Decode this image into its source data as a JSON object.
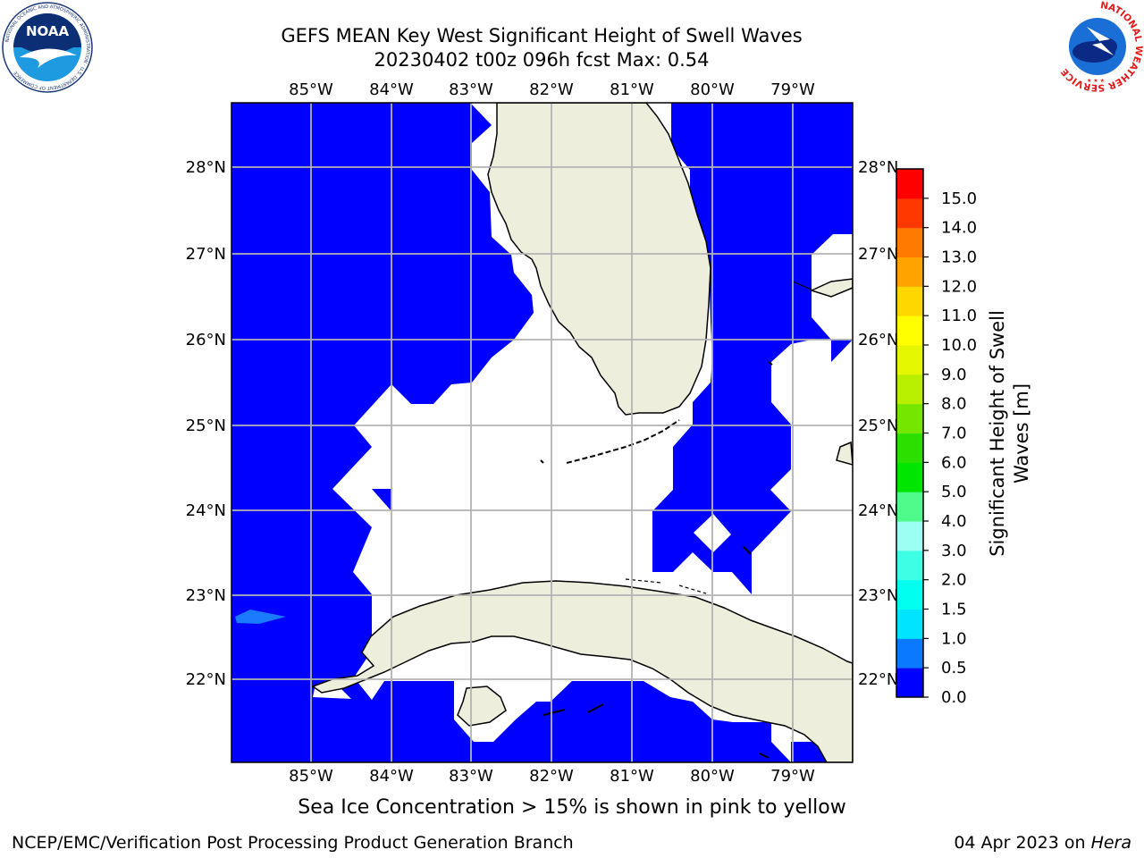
{
  "title": {
    "line1": "GEFS MEAN Key West Significant Height of Swell Waves",
    "line2": "20230402 t00z 096h fcst   Max: 0.54"
  },
  "map": {
    "lon_ticks": [
      "85°W",
      "84°W",
      "83°W",
      "82°W",
      "81°W",
      "80°W",
      "79°W"
    ],
    "lat_ticks_left": [
      "28°N",
      "27°N",
      "26°N",
      "25°N",
      "24°N",
      "23°N",
      "22°N"
    ],
    "lat_ticks_right": [
      "28°N",
      "27°N",
      "26°N",
      "25°N",
      "24°N",
      "23°N",
      "22°N"
    ],
    "water_color": "#0000ff",
    "land_color": "#eeeedd",
    "highlight_color": "#1a7bff"
  },
  "colorbar": {
    "label": "Significant Height of Swell Waves [m]",
    "tick_labels": [
      "0.0",
      "0.5",
      "1.0",
      "1.5",
      "2.0",
      "3.0",
      "4.0",
      "5.0",
      "6.0",
      "7.0",
      "8.0",
      "9.0",
      "10.0",
      "11.0",
      "12.0",
      "13.0",
      "14.0",
      "15.0"
    ],
    "colors": [
      "#0000ff",
      "#0a78ff",
      "#00e4ff",
      "#00ffee",
      "#3cffe6",
      "#9bfff3",
      "#4dfa8a",
      "#00e600",
      "#2ddf00",
      "#74e600",
      "#b8ee00",
      "#e5f700",
      "#ffff00",
      "#ffd700",
      "#ffa300",
      "#ff7a00",
      "#ff3800",
      "#ff0000"
    ]
  },
  "footer": {
    "ice_note": "Sea Ice Concentration > 15% is shown in pink to yellow",
    "credit": "NCEP/EMC/Verification Post Processing Product Generation Branch",
    "date": "04 Apr 2023 on",
    "host": "Hera"
  },
  "logos": {
    "noaa_text": "NOAA",
    "noaa_ring": "NATIONAL OCEANIC AND ATMOSPHERIC ADMINISTRATION · U.S. DEPARTMENT OF COMMERCE",
    "nws_ring": "NATIONAL WEATHER SERVICE"
  }
}
